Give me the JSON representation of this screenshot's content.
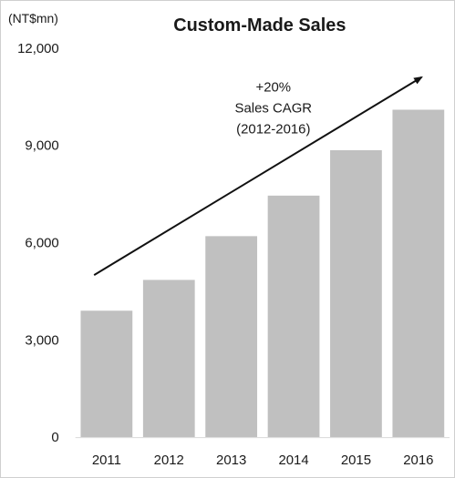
{
  "chart_data": {
    "type": "bar",
    "title": "Custom-Made Sales",
    "unit_label": "(NT$mn)",
    "xlabel": "",
    "ylabel": "",
    "categories": [
      "2011",
      "2012",
      "2013",
      "2014",
      "2015",
      "2016"
    ],
    "values": [
      3900,
      4850,
      6200,
      7450,
      8850,
      10100
    ],
    "ylim": [
      0,
      12000
    ],
    "yticks": [
      0,
      3000,
      6000,
      9000,
      12000
    ],
    "ytick_labels": [
      "0",
      "3,000",
      "6,000",
      "9,000",
      "12,000"
    ],
    "grid": false,
    "legend": "none",
    "bar_color": "#c0c0c0",
    "annotation": {
      "lines": [
        "+20%",
        "Sales CAGR",
        "(2012-2016)"
      ],
      "arrow_from": {
        "x": "2011",
        "y": 5000
      },
      "arrow_to": {
        "x": "2016",
        "y": 11100
      }
    }
  }
}
